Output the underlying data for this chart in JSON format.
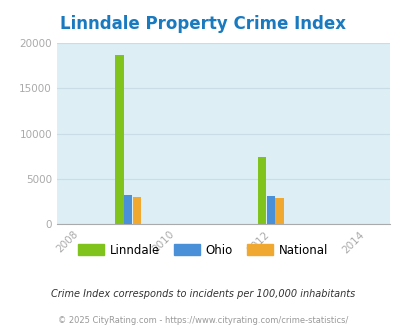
{
  "title": "Linndale Property Crime Index",
  "title_color": "#1a7abf",
  "years": [
    2009,
    2012
  ],
  "linndale": [
    18700,
    7400
  ],
  "ohio": [
    3200,
    3100
  ],
  "national": [
    3000,
    2900
  ],
  "linndale_color": "#7fc31c",
  "ohio_color": "#4a90d9",
  "national_color": "#f0a830",
  "xlim": [
    2007.5,
    2014.5
  ],
  "ylim": [
    0,
    20000
  ],
  "xticks": [
    2008,
    2010,
    2012,
    2014
  ],
  "yticks": [
    0,
    5000,
    10000,
    15000,
    20000
  ],
  "bar_width": 0.55,
  "bg_color": "#ddeef5",
  "fig_bg": "#ffffff",
  "legend_labels": [
    "Linndale",
    "Ohio",
    "National"
  ],
  "footnote1": "Crime Index corresponds to incidents per 100,000 inhabitants",
  "footnote2": "© 2025 CityRating.com - https://www.cityrating.com/crime-statistics/",
  "footnote1_color": "#333333",
  "footnote2_color": "#999999",
  "tick_color": "#aaaaaa",
  "grid_color": "#c8dde5"
}
